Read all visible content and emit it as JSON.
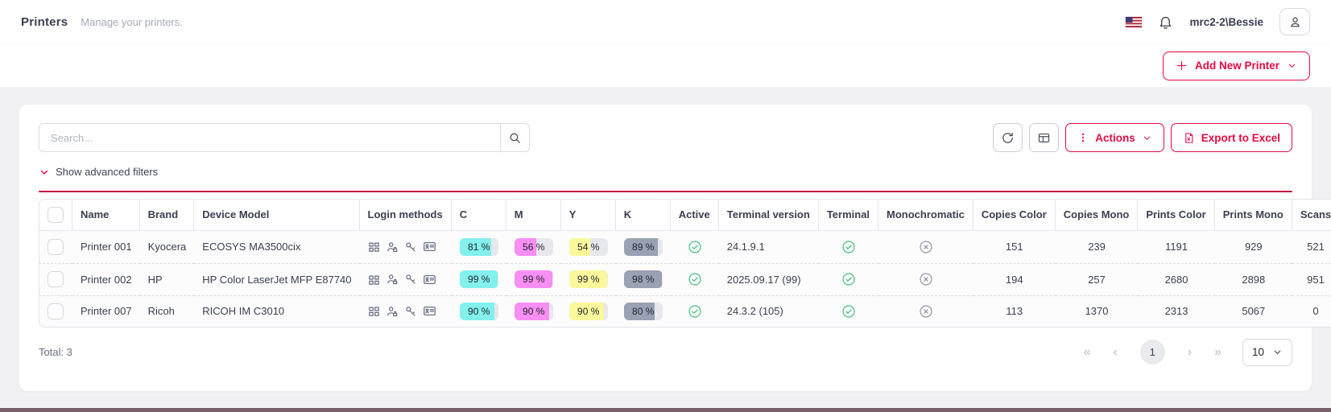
{
  "header": {
    "title": "Printers",
    "subtitle": "Manage your printers.",
    "user": "mrc2-2\\Bessie"
  },
  "toolbar": {
    "add_new_printer_label": "Add New Printer"
  },
  "card": {
    "search_placeholder": "Search...",
    "actions_label": "Actions",
    "export_label": "Export to Excel",
    "filters_label": "Show advanced filters"
  },
  "table": {
    "columns": [
      "Name",
      "Brand",
      "Device Model",
      "Login methods",
      "C",
      "M",
      "Y",
      "K",
      "Active",
      "Terminal version",
      "Terminal",
      "Monochromatic",
      "Copies Color",
      "Copies Mono",
      "Prints Color",
      "Prints Mono",
      "Scans"
    ],
    "rows": [
      {
        "name": "Printer 001",
        "brand": "Kyocera",
        "model": "ECOSYS MA3500cix",
        "login_methods": [
          "pin-code",
          "user-password",
          "key",
          "id-card"
        ],
        "c": 81,
        "m": 56,
        "y": 54,
        "k": 89,
        "active": true,
        "terminal_version": "24.1.9.1",
        "terminal": true,
        "monochromatic": false,
        "copies_color": "151",
        "copies_mono": "239",
        "prints_color": "1191",
        "prints_mono": "929",
        "scans": "521"
      },
      {
        "name": "Printer 002",
        "brand": "HP",
        "model": "HP Color LaserJet MFP E87740",
        "login_methods": [
          "pin-code",
          "user-password",
          "key",
          "id-card"
        ],
        "c": 99,
        "m": 99,
        "y": 99,
        "k": 98,
        "active": true,
        "terminal_version": "2025.09.17 (99)",
        "terminal": true,
        "monochromatic": false,
        "copies_color": "194",
        "copies_mono": "257",
        "prints_color": "2680",
        "prints_mono": "2898",
        "scans": "951"
      },
      {
        "name": "Printer 007",
        "brand": "Ricoh",
        "model": "RICOH IM C3010",
        "login_methods": [
          "pin-code",
          "user-password",
          "key",
          "id-card"
        ],
        "c": 90,
        "m": 90,
        "y": 90,
        "k": 80,
        "active": true,
        "terminal_version": "24.3.2 (105)",
        "terminal": true,
        "monochromatic": false,
        "copies_color": "113",
        "copies_mono": "1370",
        "prints_color": "2313",
        "prints_mono": "5067",
        "scans": "0"
      }
    ]
  },
  "footer": {
    "total": "Total: 3",
    "page": "1",
    "page_size": "10",
    "pagination": {
      "first": "«",
      "prev": "‹",
      "next": "›",
      "last": "»"
    }
  },
  "colors": {
    "accent": "#e30b42",
    "cyan": "#82f0ed",
    "magenta": "#f78ef3",
    "yellow": "#faf89b",
    "black_channel": "#99a1b3",
    "success": "#47be7d",
    "muted_status": "#8a90a0"
  }
}
